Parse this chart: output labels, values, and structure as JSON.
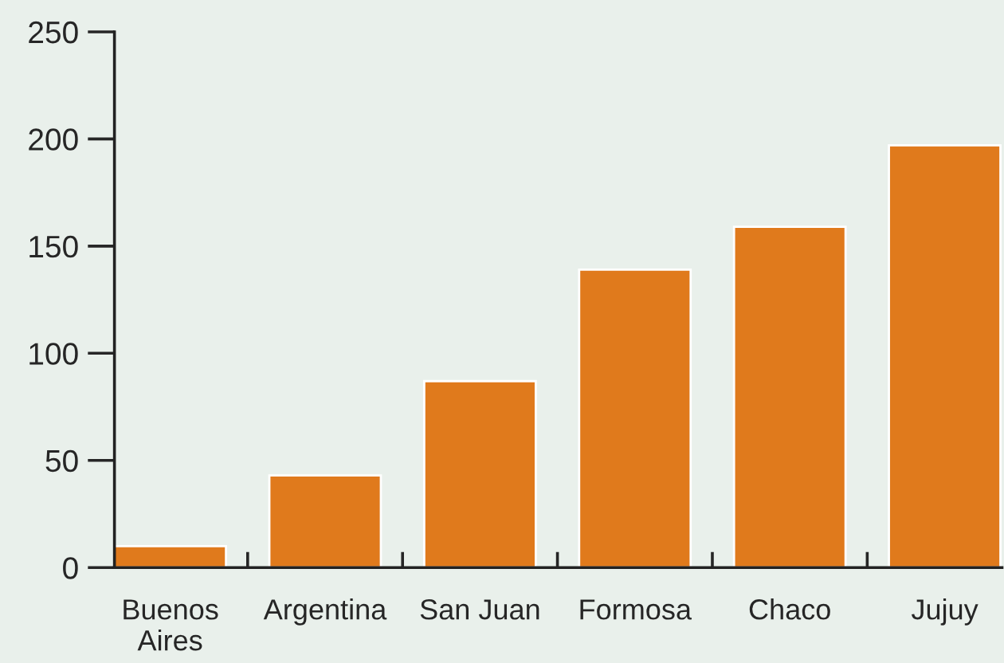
{
  "chart_data": {
    "type": "bar",
    "categories": [
      "Buenos\nAires",
      "Argentina",
      "San Juan",
      "Formosa",
      "Chaco",
      "Jujuy"
    ],
    "values": [
      10,
      43,
      87,
      139,
      159,
      197
    ],
    "color": "#e07a1c",
    "ylim": [
      0,
      250
    ],
    "yticks": [
      0,
      50,
      100,
      150,
      200,
      250
    ],
    "grid": false,
    "legend": false
  }
}
